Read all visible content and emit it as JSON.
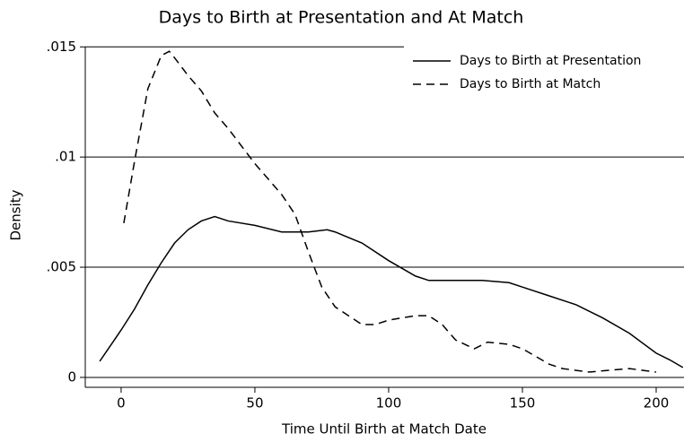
{
  "chart_data": {
    "type": "line",
    "title": "Days to Birth at Presentation and At Match",
    "xlabel": "Time Until Birth at Match Date",
    "ylabel": "Density",
    "xlim": [
      -13.4,
      210.4
    ],
    "xticks": [
      0,
      50,
      100,
      150,
      200
    ],
    "ylim": [
      -0.00045,
      0.0155
    ],
    "yticks": [
      0,
      {
        "value": 0.005,
        "label": ".005"
      },
      {
        "value": 0.01,
        "label": ".01"
      },
      {
        "value": 0.015,
        "label": ".015"
      }
    ],
    "grid": true,
    "legend": "top-right",
    "series": [
      {
        "name": "Days to Birth at Presentation",
        "color": "#000000",
        "dash": "solid",
        "x": [
          -8,
          -5,
          0,
          5,
          10,
          15,
          20,
          25,
          30,
          35,
          40,
          50,
          60,
          70,
          77,
          80,
          90,
          100,
          110,
          115,
          125,
          135,
          145,
          150,
          160,
          170,
          180,
          190,
          200,
          205,
          210
        ],
        "values": [
          0.00073,
          0.00126,
          0.00215,
          0.0031,
          0.0042,
          0.0052,
          0.0061,
          0.0067,
          0.0071,
          0.0073,
          0.0071,
          0.0069,
          0.0066,
          0.0066,
          0.0067,
          0.0066,
          0.0061,
          0.0053,
          0.0046,
          0.0044,
          0.0044,
          0.0044,
          0.0043,
          0.0041,
          0.0037,
          0.0033,
          0.0027,
          0.002,
          0.0011,
          0.0008,
          0.00045
        ]
      },
      {
        "name": "Days to Birth at Match",
        "color": "#000000",
        "dash": "dashed",
        "x": [
          1,
          5,
          10,
          15,
          18,
          20,
          25,
          30,
          35,
          40,
          50,
          60,
          65,
          70,
          75,
          80,
          90,
          95,
          100,
          110,
          115,
          120,
          125,
          132,
          137,
          145,
          150,
          160,
          165,
          175,
          180,
          190,
          200
        ],
        "values": [
          0.007,
          0.0098,
          0.0131,
          0.0146,
          0.0148,
          0.0145,
          0.0137,
          0.013,
          0.012,
          0.0113,
          0.0097,
          0.0083,
          0.0074,
          0.0057,
          0.0041,
          0.0032,
          0.0024,
          0.0024,
          0.0026,
          0.0028,
          0.0028,
          0.0024,
          0.0017,
          0.0013,
          0.0016,
          0.0015,
          0.0013,
          0.0006,
          0.0004,
          0.00024,
          0.0003,
          0.0004,
          0.00024
        ]
      }
    ]
  }
}
